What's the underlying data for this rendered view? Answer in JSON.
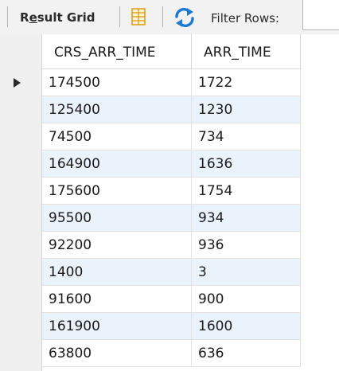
{
  "toolbar": {
    "title_prefix": "R",
    "title_underlined": "e",
    "title_rest": "sult Grid",
    "filter_label": "Filter Rows:",
    "filter_value": ""
  },
  "grid": {
    "columns": [
      "CRS_ARR_TIME",
      "ARR_TIME"
    ],
    "rows": [
      [
        "174500",
        "1722"
      ],
      [
        "125400",
        "1230"
      ],
      [
        "74500",
        "734"
      ],
      [
        "164900",
        "1636"
      ],
      [
        "175600",
        "1754"
      ],
      [
        "95500",
        "934"
      ],
      [
        "92200",
        "936"
      ],
      [
        "1400",
        "3"
      ],
      [
        "91600",
        "900"
      ],
      [
        "161900",
        "1600"
      ],
      [
        "63800",
        "636"
      ]
    ],
    "current_row_index": 0
  },
  "icons": {
    "grid_view": "form-grid-icon",
    "refresh": "refresh-arrows-icon",
    "row_marker": "current-row-arrow-icon"
  },
  "colors": {
    "alt_row": "#eaf2fb",
    "refresh_accent": "#1e7ad0",
    "grid_icon_accent": "#e6a817"
  }
}
